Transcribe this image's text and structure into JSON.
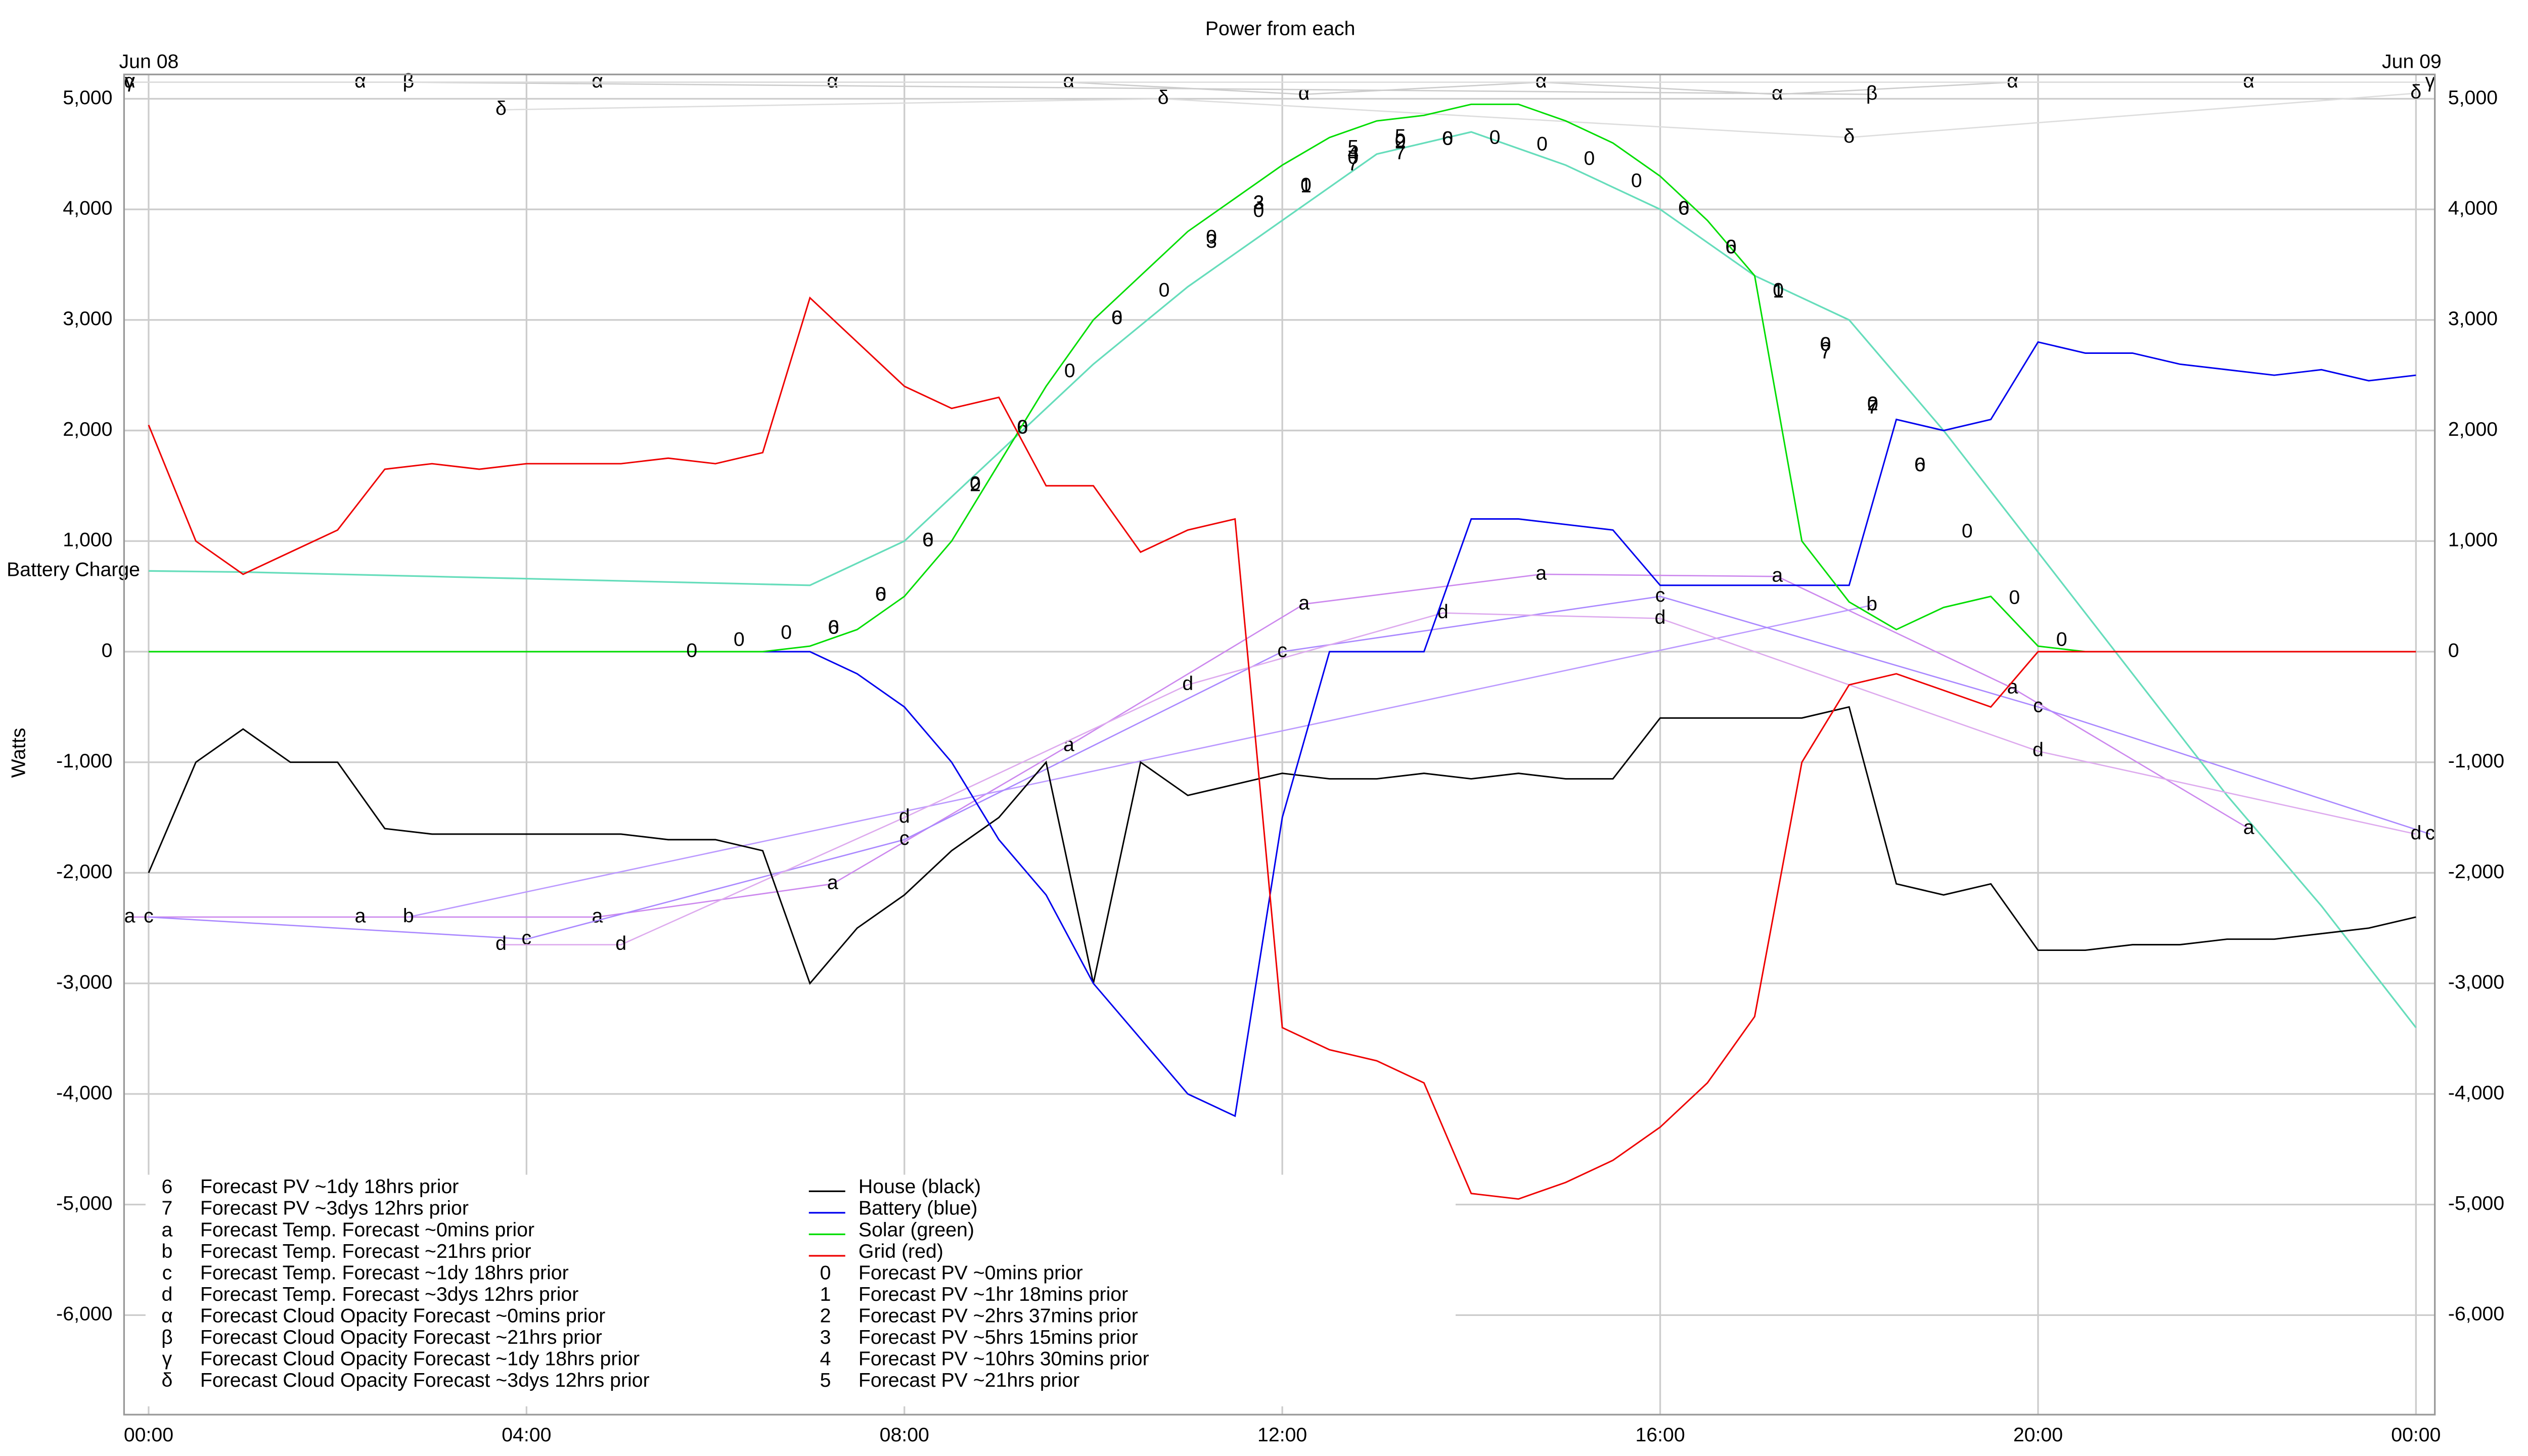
{
  "chart_data": {
    "type": "line",
    "title": "Power from each",
    "y_label": "Watts",
    "date_start": "Jun 08",
    "date_end": "Jun 09",
    "xlim": [
      -0.26,
      24.2
    ],
    "ylim": [
      -6900,
      5220
    ],
    "grid": true,
    "xticks": [
      {
        "value": 0,
        "label": "00:00"
      },
      {
        "value": 4,
        "label": "04:00"
      },
      {
        "value": 8,
        "label": "08:00"
      },
      {
        "value": 12,
        "label": "12:00"
      },
      {
        "value": 16,
        "label": "16:00"
      },
      {
        "value": 20,
        "label": "20:00"
      },
      {
        "value": 24,
        "label": "00:00"
      }
    ],
    "yticks": [
      {
        "value": -6000,
        "label": "-6,000"
      },
      {
        "value": -5000,
        "label": "-5,000"
      },
      {
        "value": -4000,
        "label": "-4,000"
      },
      {
        "value": -3000,
        "label": "-3,000"
      },
      {
        "value": -2000,
        "label": "-2,000"
      },
      {
        "value": -1000,
        "label": "-1,000"
      },
      0,
      {
        "value": 1000,
        "label": "1,000"
      },
      {
        "value": 2000,
        "label": "2,000"
      },
      {
        "value": 3000,
        "label": "3,000"
      },
      {
        "value": 4000,
        "label": "4,000"
      },
      {
        "value": 5000,
        "label": "5,000"
      }
    ],
    "x": [
      0,
      0.5,
      1,
      1.5,
      2,
      2.5,
      3,
      3.5,
      4,
      4.5,
      5,
      5.5,
      6,
      6.5,
      7,
      7.5,
      8,
      8.5,
      9,
      9.5,
      10,
      10.5,
      11,
      11.5,
      12,
      12.5,
      13,
      13.5,
      14,
      14.5,
      15,
      15.5,
      16,
      16.5,
      17,
      17.5,
      18,
      18.5,
      19,
      19.5,
      20,
      20.5,
      21,
      21.5,
      22,
      22.5,
      23,
      23.5,
      24
    ],
    "battery_charge": {
      "label": "Battery Charge",
      "color": "#66ddbb",
      "x": [
        0,
        1,
        2,
        3,
        4,
        5,
        6,
        7,
        8,
        9,
        10,
        11,
        12,
        13,
        14,
        15,
        16,
        17,
        18,
        19,
        20,
        21,
        22,
        23,
        24
      ],
      "values": [
        730,
        720,
        700,
        680,
        660,
        640,
        620,
        600,
        1000,
        1800,
        2600,
        3300,
        3900,
        4500,
        4700,
        4400,
        4000,
        3400,
        3000,
        2000,
        900,
        -200,
        -1300,
        -2300,
        -3400
      ]
    },
    "series": [
      {
        "name": "Forecast PV ~1dy 18hrs prior",
        "marker": "6",
        "style": "markers",
        "color": "#000000",
        "x": [
          7.25,
          7.75,
          8.25,
          9.25,
          10.25,
          13.75,
          16.25,
          16.75,
          17.75,
          18.75
        ],
        "values": [
          210,
          510,
          1000,
          2020,
          3010,
          4630,
          4000,
          3650,
          2770,
          1680
        ]
      },
      {
        "name": "Forecast PV ~3dys 12hrs prior",
        "marker": "7",
        "style": "markers",
        "color": "#000000",
        "x": [
          12.75,
          13.25,
          17.75,
          18.25
        ],
        "values": [
          4400,
          4500,
          2700,
          2200
        ]
      },
      {
        "name": "Forecast Temp. Forecast ~0mins prior",
        "marker": "a",
        "style": "both",
        "color": "#cc88ee",
        "x": [
          -0.2,
          2.24,
          4.75,
          7.24,
          9.74,
          12.23,
          14.74,
          17.24,
          19.73,
          22.23
        ],
        "values": [
          -2400,
          -2400,
          -2400,
          -2100,
          -850,
          430,
          700,
          680,
          -330,
          -1600
        ]
      },
      {
        "name": "Forecast Temp. Forecast ~21hrs prior",
        "marker": "b",
        "style": "both",
        "color": "#bb99ff",
        "x": [
          2.75,
          18.24
        ],
        "values": [
          -2400,
          420
        ]
      },
      {
        "name": "Forecast Temp. Forecast ~1dy 18hrs prior",
        "marker": "c",
        "style": "both",
        "color": "#aa88ff",
        "x": [
          0,
          4,
          8,
          12,
          16,
          20,
          24.15
        ],
        "values": [
          -2400,
          -2600,
          -1700,
          0,
          500,
          -500,
          -1650
        ]
      },
      {
        "name": "Forecast Temp. Forecast ~3dys 12hrs prior",
        "marker": "d",
        "style": "both",
        "color": "#ddaaee",
        "x": [
          3.73,
          5,
          8,
          11,
          13.7,
          16,
          20,
          24
        ],
        "values": [
          -2650,
          -2650,
          -1500,
          -300,
          350,
          300,
          -900,
          -1650
        ]
      },
      {
        "name": "Forecast Cloud Opacity Forecast ~0mins prior",
        "marker": "α",
        "style": "both",
        "color": "#cccccc",
        "x": [
          -0.2,
          2.24,
          4.75,
          7.24,
          9.74,
          12.23,
          14.74,
          17.24,
          19.73,
          22.23
        ],
        "values": [
          5150,
          5150,
          5150,
          5150,
          5150,
          5040,
          5150,
          5040,
          5150,
          5150
        ]
      },
      {
        "name": "Forecast Cloud Opacity Forecast ~21hrs prior",
        "marker": "β",
        "style": "both",
        "color": "#cccccc",
        "x": [
          2.75,
          18.24
        ],
        "values": [
          5150,
          5040
        ]
      },
      {
        "name": "Forecast Cloud Opacity Forecast ~1dy 18hrs prior",
        "marker": "γ",
        "style": "both",
        "color": "#dddddd",
        "x": [
          -0.2,
          24.15
        ],
        "values": [
          5150,
          5150
        ]
      },
      {
        "name": "Forecast Cloud Opacity Forecast ~3dys 12hrs prior",
        "marker": "δ",
        "style": "both",
        "color": "#dddddd",
        "x": [
          3.73,
          10.74,
          18,
          24
        ],
        "values": [
          4900,
          5000,
          4650,
          5050
        ]
      },
      {
        "name": "House (black)",
        "style": "line",
        "color": "#000000",
        "values": [
          -2000,
          -1000,
          -700,
          -1000,
          -1000,
          -1600,
          -1650,
          -1650,
          -1650,
          -1650,
          -1650,
          -1700,
          -1700,
          -1800,
          -3000,
          -2500,
          -2200,
          -1800,
          -1500,
          -1000,
          -3000,
          -1000,
          -1300,
          -1200,
          -1100,
          -1150,
          -1150,
          -1100,
          -1150,
          -1100,
          -1150,
          -1150,
          -600,
          -600,
          -600,
          -600,
          -500,
          -2100,
          -2200,
          -2100,
          -2700,
          -2700,
          -2650,
          -2650,
          -2600,
          -2600,
          -2550,
          -2500,
          -2400
        ]
      },
      {
        "name": "Battery (blue)",
        "style": "line",
        "color": "#0000ee",
        "values": [
          0,
          0,
          0,
          0,
          0,
          0,
          0,
          0,
          0,
          0,
          0,
          0,
          0,
          0,
          0,
          -200,
          -500,
          -1000,
          -1700,
          -2200,
          -3000,
          -3500,
          -4000,
          -4200,
          -1500,
          0,
          0,
          0,
          1200,
          1200,
          1150,
          1100,
          600,
          600,
          600,
          600,
          600,
          2100,
          2000,
          2100,
          2800,
          2700,
          2700,
          2600,
          2550,
          2500,
          2550,
          2450,
          2500
        ]
      },
      {
        "name": "Solar (green)",
        "style": "line",
        "color": "#00dd00",
        "values": [
          0,
          0,
          0,
          0,
          0,
          0,
          0,
          0,
          0,
          0,
          0,
          0,
          0,
          0,
          50,
          200,
          500,
          1000,
          1700,
          2400,
          3000,
          3400,
          3800,
          4100,
          4400,
          4650,
          4800,
          4850,
          4950,
          4950,
          4800,
          4600,
          4300,
          3900,
          3400,
          1000,
          450,
          200,
          400,
          500,
          50,
          0,
          0,
          0,
          0,
          0,
          0,
          0,
          0
        ]
      },
      {
        "name": "Grid (red)",
        "style": "line",
        "color": "#ee0000",
        "values": [
          2050,
          1000,
          700,
          900,
          1100,
          1650,
          1700,
          1650,
          1700,
          1700,
          1700,
          1750,
          1700,
          1800,
          3200,
          2800,
          2400,
          2200,
          2300,
          1500,
          1500,
          900,
          1100,
          1200,
          -3400,
          -3600,
          -3700,
          -3900,
          -4900,
          -4950,
          -4800,
          -4600,
          -4300,
          -3900,
          -3300,
          -1000,
          -300,
          -200,
          -350,
          -500,
          0,
          0,
          0,
          0,
          0,
          0,
          0,
          0,
          0
        ]
      },
      {
        "name": "Forecast PV ~0mins prior",
        "marker": "0",
        "style": "markers",
        "color": "#000000",
        "x": [
          5.75,
          6.25,
          6.75,
          7.25,
          7.75,
          8.25,
          8.75,
          9.25,
          9.75,
          10.25,
          10.75,
          11.25,
          11.75,
          12.25,
          12.75,
          13.25,
          13.75,
          14.25,
          14.75,
          15.25,
          15.75,
          16.25,
          16.75,
          17.25,
          17.75,
          18.25,
          18.75,
          19.25,
          19.75,
          20.25
        ],
        "values": [
          0,
          100,
          165,
          210,
          510,
          1000,
          1510,
          2020,
          2530,
          3010,
          3260,
          3740,
          3980,
          4210,
          4460,
          4610,
          4630,
          4640,
          4580,
          4450,
          4250,
          4000,
          3650,
          3260,
          2770,
          2230,
          1680,
          1080,
          480,
          100
        ]
      },
      {
        "name": "Forecast PV ~1hr 18mins prior",
        "marker": "1",
        "style": "markers",
        "color": "#000000",
        "x": [
          12.25,
          17.25
        ],
        "values": [
          4200,
          3250
        ]
      },
      {
        "name": "Forecast PV ~2hrs 37mins prior",
        "marker": "2",
        "style": "markers",
        "color": "#000000",
        "x": [
          8.75,
          11.75,
          13.25,
          18.25
        ],
        "values": [
          1500,
          4050,
          4600,
          2230
        ]
      },
      {
        "name": "Forecast PV ~5hrs 15mins prior",
        "marker": "3",
        "style": "markers",
        "color": "#000000",
        "x": [
          11.25,
          11.75
        ],
        "values": [
          3700,
          4050
        ]
      },
      {
        "name": "Forecast PV ~10hrs 30mins prior",
        "marker": "4",
        "style": "markers",
        "color": "#000000",
        "x": [
          12.75
        ],
        "values": [
          4500
        ]
      },
      {
        "name": "Forecast PV ~21hrs prior",
        "marker": "5",
        "style": "markers",
        "color": "#000000",
        "x": [
          12.75,
          13.25
        ],
        "values": [
          4550,
          4650
        ]
      }
    ]
  }
}
